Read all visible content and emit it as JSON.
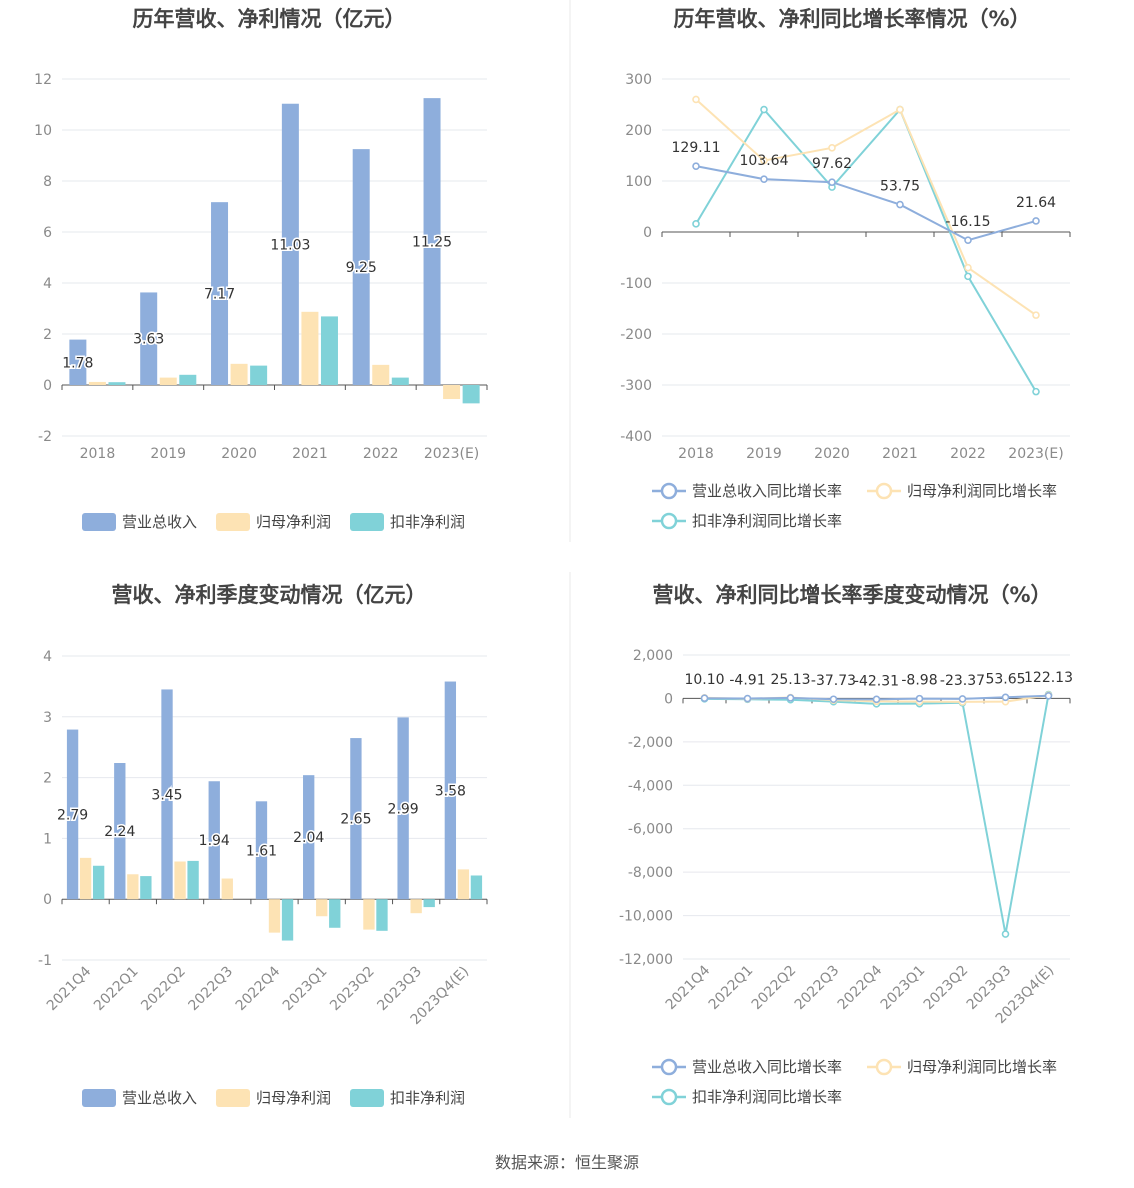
{
  "colors": {
    "revenue": "#8eaedc",
    "net_profit": "#fde3b4",
    "deducted_profit": "#80d2d8",
    "grid": "#e6e8ee",
    "axis": "#555555",
    "divider": "#e8e8e8"
  },
  "source_text": "数据来源：恒生聚源",
  "chart_data": [
    {
      "type": "bar",
      "title": "历年营收、净利情况（亿元）",
      "categories": [
        "2018",
        "2019",
        "2020",
        "2021",
        "2022",
        "2023(E)"
      ],
      "ylim": [
        -2,
        12
      ],
      "yticks": [
        -2,
        0,
        2,
        4,
        6,
        8,
        10,
        12
      ],
      "grid": true,
      "legend": "bottom",
      "series": [
        {
          "name": "营业总收入",
          "values": [
            1.78,
            3.63,
            7.17,
            11.03,
            9.25,
            11.25
          ],
          "labels": [
            "1.78",
            "3.63",
            "7.17",
            "11.03",
            "9.25",
            "11.25"
          ]
        },
        {
          "name": "归母净利润",
          "values": [
            0.12,
            0.29,
            0.83,
            2.87,
            0.79,
            -0.55
          ]
        },
        {
          "name": "扣非净利润",
          "values": [
            0.11,
            0.4,
            0.76,
            2.69,
            0.29,
            -0.72
          ]
        }
      ]
    },
    {
      "type": "line",
      "title": "历年营收、净利同比增长率情况（%）",
      "categories": [
        "2018",
        "2019",
        "2020",
        "2021",
        "2022",
        "2023(E)"
      ],
      "ylim": [
        -400,
        300
      ],
      "yticks": [
        -400,
        -300,
        -200,
        -100,
        0,
        100,
        200,
        300
      ],
      "grid": true,
      "legend": "bottom",
      "series": [
        {
          "name": "营业总收入同比增长率",
          "values": [
            129.11,
            103.64,
            97.62,
            53.75,
            -16.15,
            21.64
          ],
          "labels": [
            "129.11",
            "103.64",
            "97.62",
            "53.75",
            "-16.15",
            "21.64"
          ]
        },
        {
          "name": "归母净利润同比增长率",
          "values": [
            260,
            140,
            165,
            240,
            -70,
            -163
          ]
        },
        {
          "name": "扣非净利润同比增长率",
          "values": [
            16,
            240,
            88,
            240,
            -87,
            -313
          ]
        }
      ]
    },
    {
      "type": "bar",
      "title": "营收、净利季度变动情况（亿元）",
      "categories": [
        "2021Q4",
        "2022Q1",
        "2022Q2",
        "2022Q3",
        "2022Q4",
        "2023Q1",
        "2023Q2",
        "2023Q3",
        "2023Q4(E)"
      ],
      "ylim": [
        -1,
        4
      ],
      "yticks": [
        -1,
        0,
        1,
        2,
        3,
        4
      ],
      "grid": true,
      "legend": "bottom",
      "series": [
        {
          "name": "营业总收入",
          "values": [
            2.79,
            2.24,
            3.45,
            1.94,
            1.61,
            2.04,
            2.65,
            2.99,
            3.58
          ],
          "labels": [
            "2.79",
            "2.24",
            "3.45",
            "1.94",
            "1.61",
            "2.04",
            "2.65",
            "2.99",
            "3.58"
          ]
        },
        {
          "name": "归母净利润",
          "values": [
            0.68,
            0.41,
            0.62,
            0.34,
            -0.55,
            -0.28,
            -0.5,
            -0.23,
            0.49
          ]
        },
        {
          "name": "扣非净利润",
          "values": [
            0.55,
            0.38,
            0.63,
            0.0,
            -0.68,
            -0.47,
            -0.52,
            -0.13,
            0.39
          ]
        }
      ]
    },
    {
      "type": "line",
      "title": "营收、净利同比增长率季度变动情况（%）",
      "categories": [
        "2021Q4",
        "2022Q1",
        "2022Q2",
        "2022Q3",
        "2022Q4",
        "2023Q1",
        "2023Q2",
        "2023Q3",
        "2023Q4(E)"
      ],
      "ylim": [
        -12000,
        2000
      ],
      "yticks": [
        -12000,
        -10000,
        -8000,
        -6000,
        -4000,
        -2000,
        0,
        2000
      ],
      "grid": true,
      "legend": "bottom",
      "series": [
        {
          "name": "营业总收入同比增长率",
          "values": [
            10.1,
            -4.91,
            25.13,
            -37.73,
            -42.31,
            -8.98,
            -23.37,
            53.65,
            122.13
          ],
          "labels": [
            "10.10",
            "-4.91",
            "25.13",
            "-37.73",
            "-42.31",
            "-8.98",
            "-23.37",
            "53.65",
            "122.13"
          ]
        },
        {
          "name": "归母净利润同比增长率",
          "values": [
            30,
            -20,
            40,
            -80,
            -130,
            -150,
            -160,
            -150,
            150
          ]
        },
        {
          "name": "扣非净利润同比增长率",
          "values": [
            -20,
            -40,
            -60,
            -150,
            -250,
            -240,
            -200,
            -10850,
            180
          ]
        }
      ]
    }
  ]
}
